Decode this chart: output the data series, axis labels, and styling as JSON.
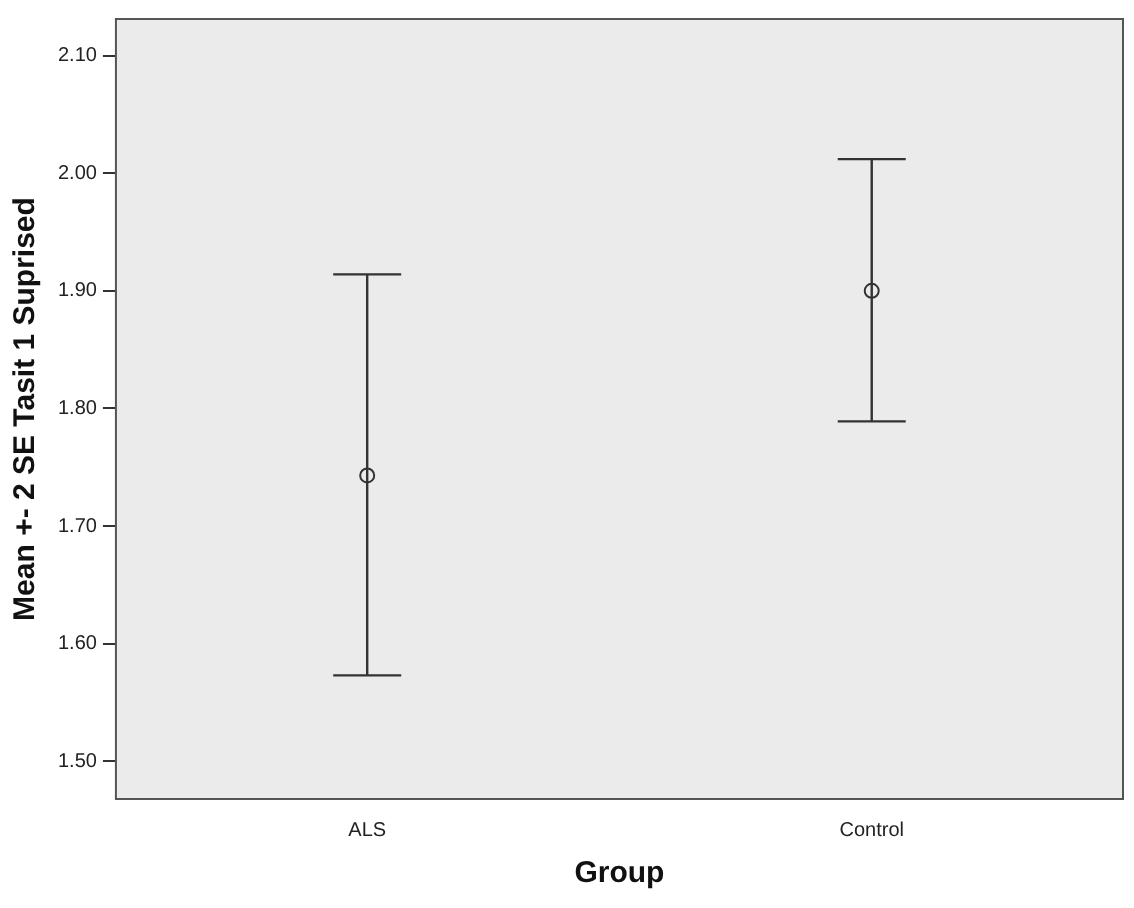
{
  "chart_data": {
    "type": "scatter",
    "xlabel": "Group",
    "ylabel": "Mean +- 2 SE Tasit 1 Suprised",
    "categories": [
      "ALS",
      "Control"
    ],
    "series": [
      {
        "color": "#333333",
        "values": [
          1.743,
          1.9
        ],
        "errors": [
          [
            1.573,
            1.914
          ],
          [
            1.789,
            2.012
          ]
        ]
      }
    ],
    "ylim": [
      1.467,
      2.132
    ],
    "yticks": [
      {
        "value": 1.5,
        "label": "1.50"
      },
      {
        "value": 1.6,
        "label": "1.60"
      },
      {
        "value": 1.7,
        "label": "1.70"
      },
      {
        "value": 1.8,
        "label": "1.80"
      },
      {
        "value": 1.9,
        "label": "1.90"
      },
      {
        "value": 2.0,
        "label": "2.00"
      },
      {
        "value": 2.1,
        "label": "2.10"
      }
    ],
    "grid": false,
    "legend": false,
    "marker": "circle"
  }
}
